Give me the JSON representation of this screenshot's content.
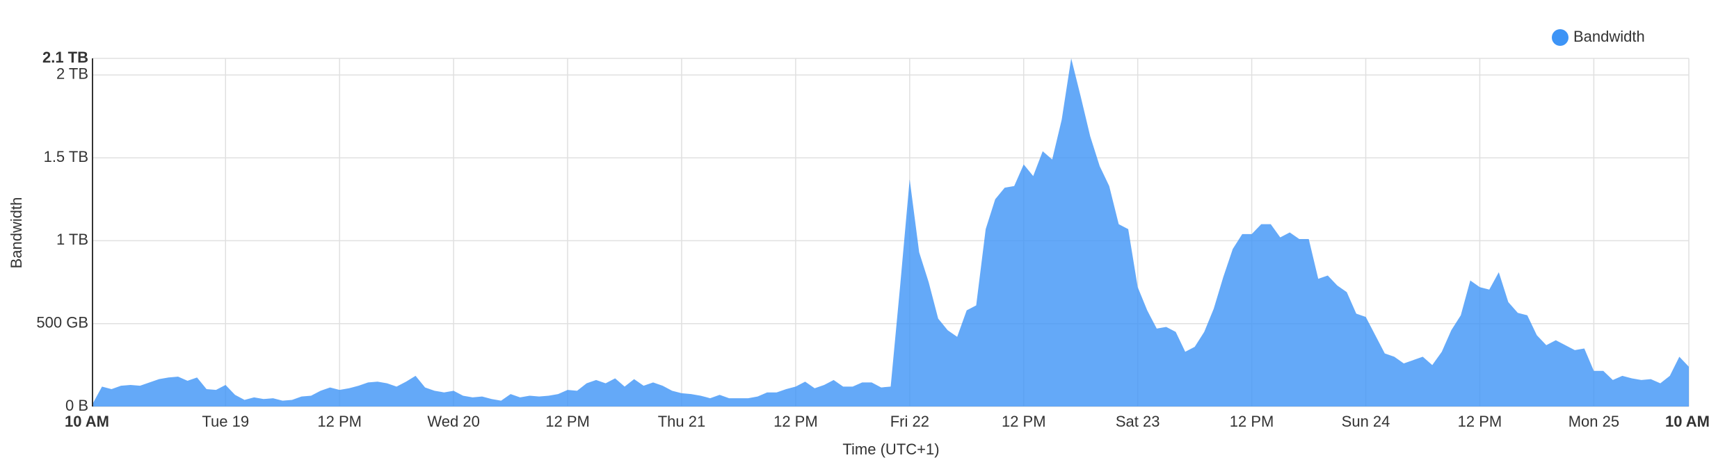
{
  "chart_data": {
    "type": "area",
    "y_label": "Bandwidth",
    "x_label": "Time (UTC+1)",
    "categories": [
      "10 AM",
      null,
      null,
      null,
      null,
      null,
      null,
      null,
      null,
      null,
      null,
      null,
      null,
      null,
      "Tue 19",
      null,
      null,
      null,
      null,
      null,
      null,
      null,
      null,
      null,
      null,
      null,
      "12 PM",
      null,
      null,
      null,
      null,
      null,
      null,
      null,
      null,
      null,
      null,
      null,
      "Wed 20",
      null,
      null,
      null,
      null,
      null,
      null,
      null,
      null,
      null,
      null,
      null,
      "12 PM",
      null,
      null,
      null,
      null,
      null,
      null,
      null,
      null,
      null,
      null,
      null,
      "Thu 21",
      null,
      null,
      null,
      null,
      null,
      null,
      null,
      null,
      null,
      null,
      null,
      "12 PM",
      null,
      null,
      null,
      null,
      null,
      null,
      null,
      null,
      null,
      null,
      null,
      "Fri 22",
      null,
      null,
      null,
      null,
      null,
      null,
      null,
      null,
      null,
      null,
      null,
      "12 PM",
      null,
      null,
      null,
      null,
      null,
      null,
      null,
      null,
      null,
      null,
      null,
      "Sat 23",
      null,
      null,
      null,
      null,
      null,
      null,
      null,
      null,
      null,
      null,
      null,
      "12 PM",
      null,
      null,
      null,
      null,
      null,
      null,
      null,
      null,
      null,
      null,
      null,
      "Sun 24",
      null,
      null,
      null,
      null,
      null,
      null,
      null,
      null,
      null,
      null,
      null,
      "12 PM",
      null,
      null,
      null,
      null,
      null,
      null,
      null,
      null,
      null,
      null,
      null,
      "Mon 25",
      null,
      null,
      null,
      null,
      null,
      null,
      null,
      null,
      null,
      "10 AM"
    ],
    "series": [
      {
        "name": "Bandwidth",
        "color": "#3d94f6",
        "values": [
          15,
          120,
          105,
          125,
          130,
          125,
          145,
          165,
          175,
          180,
          155,
          175,
          105,
          100,
          130,
          70,
          40,
          55,
          45,
          50,
          35,
          40,
          60,
          65,
          95,
          115,
          100,
          110,
          125,
          145,
          150,
          140,
          120,
          150,
          185,
          115,
          95,
          85,
          95,
          65,
          55,
          60,
          45,
          35,
          75,
          55,
          65,
          60,
          65,
          75,
          100,
          95,
          140,
          160,
          140,
          170,
          120,
          165,
          125,
          145,
          125,
          95,
          80,
          75,
          65,
          50,
          70,
          50,
          50,
          50,
          60,
          85,
          85,
          105,
          120,
          150,
          110,
          130,
          160,
          120,
          120,
          145,
          145,
          115,
          120,
          730,
          1370,
          930,
          750,
          530,
          460,
          420,
          580,
          610,
          1070,
          1250,
          1320,
          1330,
          1460,
          1390,
          1540,
          1490,
          1730,
          2100,
          1870,
          1630,
          1450,
          1330,
          1100,
          1070,
          720,
          580,
          470,
          480,
          450,
          330,
          360,
          450,
          590,
          780,
          950,
          1040,
          1040,
          1100,
          1100,
          1020,
          1050,
          1010,
          1010,
          770,
          790,
          730,
          690,
          560,
          540,
          430,
          320,
          300,
          260,
          280,
          300,
          250,
          330,
          460,
          550,
          760,
          720,
          705,
          810,
          630,
          565,
          550,
          430,
          370,
          400,
          370,
          340,
          350,
          215,
          215,
          160,
          185,
          170,
          160,
          165,
          140,
          185,
          300,
          240
        ]
      }
    ],
    "ylim": [
      0,
      2100
    ],
    "yticks": [
      {
        "value": 0,
        "label": "0 B"
      },
      {
        "value": 500,
        "label": "500 GB"
      },
      {
        "value": 1000,
        "label": "1 TB"
      },
      {
        "value": 1500,
        "label": "1.5 TB"
      },
      {
        "value": 2000,
        "label": "2 TB"
      },
      {
        "value": 2100,
        "label": "2.1 TB"
      }
    ],
    "grid": true,
    "legend": "top-right"
  }
}
